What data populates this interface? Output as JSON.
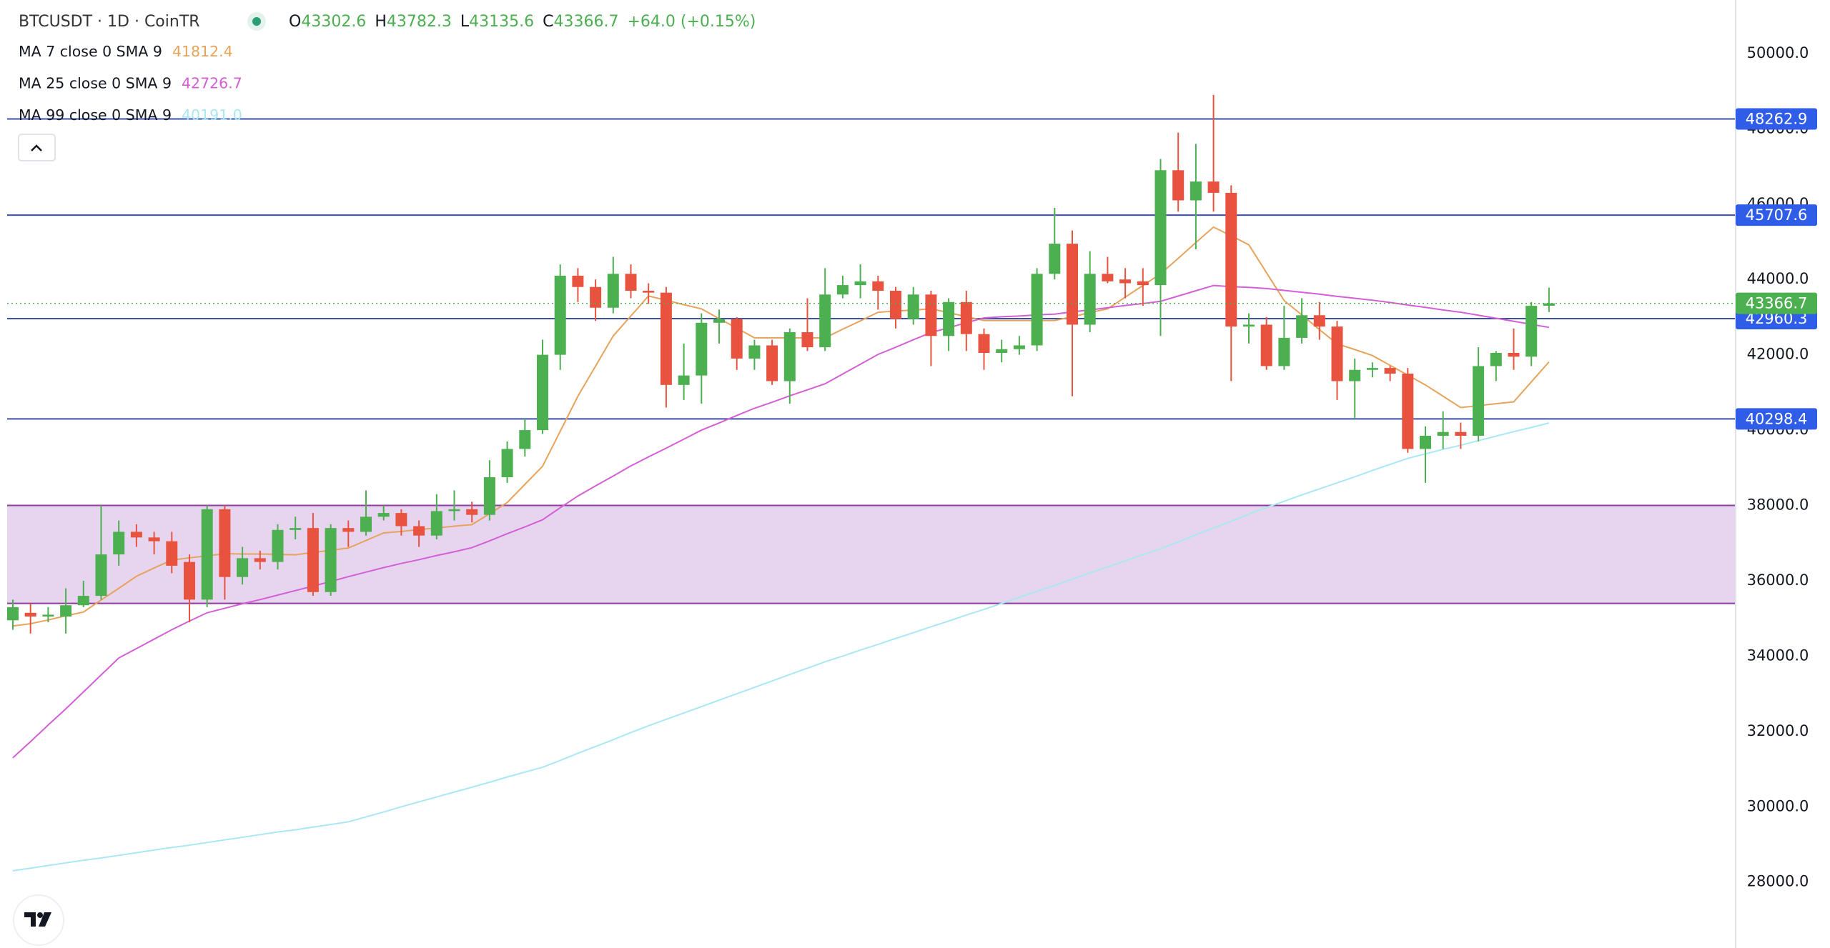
{
  "header": {
    "symbol": "BTCUSDT · 1D · CoinTR",
    "ohlc_prefixes": [
      "O",
      "H",
      "L",
      "C"
    ],
    "change": "+64.0 (+0.15%)"
  },
  "chart_data": {
    "type": "candlestick",
    "up_color": "#4caf50",
    "down_color": "#e8533f",
    "open": [
      34950,
      35150,
      35050,
      35050,
      35350,
      35600,
      36700,
      37300,
      37150,
      37050,
      36500,
      35500,
      37900,
      36100,
      36600,
      36500,
      37350,
      37400,
      35700,
      37400,
      37300,
      37700,
      37800,
      37450,
      37200,
      37850,
      37900,
      37750,
      38750,
      39500,
      40000,
      42000,
      44100,
      43800,
      43250,
      44150,
      43700,
      43650,
      41200,
      41450,
      42850,
      42950,
      41900,
      42250,
      41300,
      42600,
      42200,
      43600,
      43850,
      43950,
      43700,
      42950,
      43600,
      42500,
      43400,
      42550,
      42050,
      42150,
      42250,
      44150,
      44950,
      42800,
      44150,
      44000,
      43950,
      43850,
      46900,
      46100,
      46600,
      46300,
      42750,
      42800,
      41700,
      42450,
      43050,
      42750,
      41300,
      41600,
      41650,
      41500,
      39500,
      39850,
      39950,
      39850,
      41700,
      42050,
      41950,
      43302.6
    ],
    "high": [
      35500,
      35400,
      35300,
      35800,
      36000,
      38000,
      37600,
      37500,
      37300,
      37300,
      36700,
      38000,
      38000,
      36900,
      36800,
      37500,
      37700,
      37800,
      37500,
      37600,
      38400,
      38000,
      37900,
      37600,
      38300,
      38400,
      38100,
      39200,
      39700,
      40300,
      42400,
      44400,
      44300,
      44000,
      44600,
      44400,
      43900,
      43800,
      42300,
      43100,
      43200,
      43000,
      42400,
      42400,
      42700,
      43500,
      44300,
      44100,
      44400,
      44100,
      43800,
      43800,
      43700,
      43500,
      43700,
      42700,
      42400,
      42500,
      44300,
      45900,
      45300,
      44750,
      44600,
      44300,
      44300,
      47200,
      47900,
      47600,
      48900,
      46500,
      43100,
      43000,
      43300,
      43500,
      43400,
      42900,
      41900,
      41800,
      41700,
      41650,
      40100,
      40500,
      40200,
      42200,
      42100,
      42700,
      43400,
      43782.3
    ],
    "low": [
      34700,
      34600,
      34900,
      34600,
      35300,
      35500,
      36400,
      36900,
      36700,
      36200,
      34900,
      35300,
      35500,
      35900,
      36300,
      36300,
      37100,
      35600,
      35600,
      36900,
      37200,
      37600,
      37200,
      36900,
      37100,
      37600,
      37550,
      37600,
      38600,
      39300,
      39900,
      41600,
      43400,
      42900,
      43100,
      43500,
      43350,
      40600,
      40800,
      40700,
      42300,
      41600,
      41600,
      41200,
      40700,
      42100,
      42100,
      43500,
      43500,
      43200,
      42700,
      42800,
      41700,
      42100,
      42100,
      41600,
      41800,
      42000,
      42100,
      44000,
      40900,
      42600,
      43900,
      43500,
      43300,
      42500,
      45800,
      44800,
      45800,
      41300,
      42300,
      41600,
      41600,
      42300,
      42400,
      40800,
      40300,
      41400,
      41300,
      39400,
      38600,
      39500,
      39500,
      39700,
      41300,
      41600,
      41700,
      43135.6
    ],
    "close": [
      35300,
      35050,
      35100,
      35350,
      35600,
      36700,
      37300,
      37150,
      37050,
      36400,
      35500,
      37900,
      36100,
      36600,
      36500,
      37350,
      37400,
      35700,
      37400,
      37300,
      37700,
      37800,
      37450,
      37200,
      37850,
      37900,
      37750,
      38750,
      39500,
      40000,
      42000,
      44100,
      43800,
      43250,
      44150,
      43700,
      43650,
      41200,
      41450,
      42850,
      42950,
      41900,
      42250,
      41300,
      42600,
      42200,
      43600,
      43850,
      43950,
      43700,
      42950,
      43600,
      42500,
      43400,
      42550,
      42050,
      42150,
      42250,
      44150,
      44950,
      42800,
      44150,
      43950,
      43900,
      43850,
      46900,
      46100,
      46600,
      46300,
      42750,
      42800,
      41700,
      42450,
      43050,
      42750,
      41300,
      41600,
      41650,
      41500,
      39500,
      39850,
      39950,
      39850,
      41700,
      42050,
      41950,
      43300,
      43366.7
    ],
    "series": [
      {
        "name": "MA 7 close 0 SMA 9",
        "color": "#e6a35c",
        "values": [
          34800,
          34860,
          34960,
          35070,
          35170,
          35490,
          35800,
          36120,
          36340,
          36550,
          36610,
          36660,
          36720,
          36710,
          36710,
          36700,
          36690,
          36750,
          36810,
          36870,
          37070,
          37270,
          37310,
          37360,
          37400,
          37450,
          37490,
          37780,
          38080,
          38560,
          39040,
          39970,
          40900,
          41700,
          42500,
          43030,
          43560,
          43450,
          43330,
          43220,
          42960,
          42710,
          42450,
          42450,
          42450,
          42450,
          42450,
          42680,
          42900,
          43130,
          43160,
          43190,
          43220,
          43120,
          43010,
          42910,
          42910,
          42910,
          42910,
          42910,
          43010,
          43120,
          43220,
          43530,
          43840,
          44150,
          44560,
          44980,
          45390,
          45160,
          44920,
          44180,
          43440,
          43060,
          42670,
          42290,
          42140,
          41980,
          41720,
          41460,
          41200,
          40900,
          40600,
          40650,
          40700,
          40750,
          41280,
          41812.4
        ]
      },
      {
        "name": "MA 25 close 0 SMA 9",
        "color": "#d35fd6",
        "values": [
          31300,
          31730,
          32170,
          32600,
          33050,
          33500,
          33950,
          34200,
          34450,
          34700,
          34930,
          35150,
          35270,
          35390,
          35500,
          35620,
          35740,
          35860,
          35980,
          36110,
          36230,
          36350,
          36460,
          36560,
          36670,
          36770,
          36880,
          37060,
          37250,
          37430,
          37620,
          37940,
          38250,
          38520,
          38780,
          39050,
          39290,
          39520,
          39760,
          40000,
          40190,
          40390,
          40580,
          40740,
          40910,
          41070,
          41230,
          41490,
          41750,
          42010,
          42200,
          42400,
          42590,
          42720,
          42850,
          42980,
          43010,
          43030,
          43060,
          43080,
          43140,
          43190,
          43250,
          43310,
          43360,
          43420,
          43560,
          43700,
          43840,
          43810,
          43790,
          43760,
          43710,
          43660,
          43610,
          43550,
          43500,
          43450,
          43390,
          43320,
          43260,
          43190,
          43130,
          43050,
          42970,
          42890,
          42810,
          42726.7
        ]
      },
      {
        "name": "MA 99 close 0 SMA 9",
        "color": "#a9e8f3",
        "last_value_label": "40191.0",
        "values": [
          28300,
          28370,
          28440,
          28510,
          28580,
          28640,
          28710,
          28780,
          28850,
          28920,
          28980,
          29050,
          29120,
          29190,
          29260,
          29330,
          29390,
          29460,
          29530,
          29600,
          29730,
          29860,
          30000,
          30130,
          30260,
          30390,
          30520,
          30650,
          30790,
          30920,
          31050,
          31230,
          31420,
          31600,
          31780,
          31970,
          32150,
          32320,
          32490,
          32660,
          32830,
          33000,
          33170,
          33340,
          33510,
          33680,
          33850,
          34000,
          34160,
          34310,
          34470,
          34620,
          34780,
          34930,
          35090,
          35240,
          35400,
          35560,
          35720,
          35880,
          36040,
          36210,
          36370,
          36530,
          36690,
          36850,
          37030,
          37220,
          37400,
          37580,
          37770,
          37950,
          38110,
          38280,
          38440,
          38600,
          38760,
          38930,
          39090,
          39250,
          39370,
          39490,
          39600,
          39720,
          39840,
          39960,
          40070,
          40191
        ]
      }
    ],
    "levels": [
      48262.9,
      45707.6,
      42960.3,
      40298.4
    ],
    "level_color": "#3a4fa6",
    "level_label_color": "#2f5de8",
    "zone": {
      "low": 35400,
      "high": 38000,
      "color": "#e7d5ef",
      "border": "#8e3b9e"
    },
    "ylim": [
      26250,
      51420
    ],
    "yticks": [
      {
        "value": 28000,
        "label": "28000.0"
      },
      {
        "value": 30000,
        "label": "30000.0"
      },
      {
        "value": 32000,
        "label": "32000.0"
      },
      {
        "value": 34000,
        "label": "34000.0"
      },
      {
        "value": 36000,
        "label": "36000.0"
      },
      {
        "value": 38000,
        "label": "38000.0"
      },
      {
        "value": 40000,
        "label": "40000.0"
      },
      {
        "value": 42000,
        "label": "42000.0"
      },
      {
        "value": 44000,
        "label": "44000.0"
      },
      {
        "value": 46000,
        "label": "46000.0"
      },
      {
        "value": 48000,
        "label": "48000.0"
      },
      {
        "value": 50000,
        "label": "50000.0"
      }
    ]
  }
}
